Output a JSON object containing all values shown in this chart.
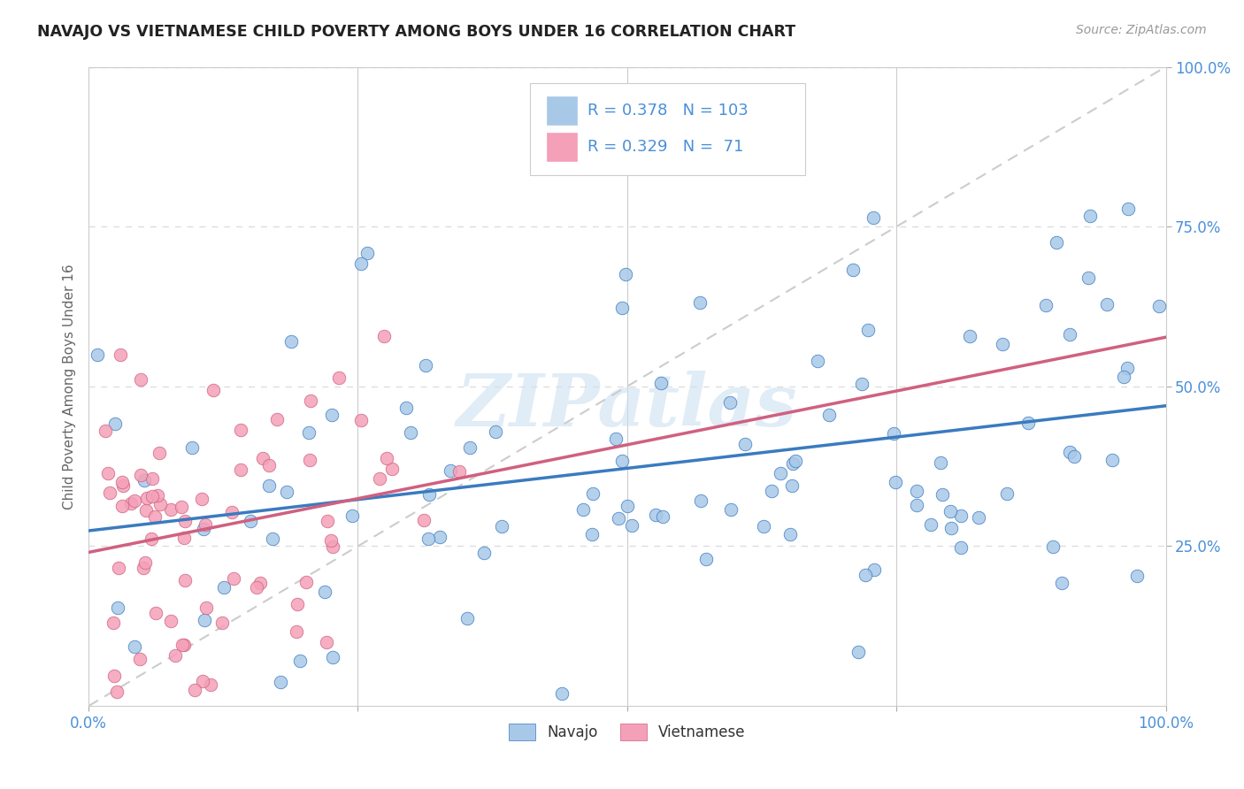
{
  "title": "NAVAJO VS VIETNAMESE CHILD POVERTY AMONG BOYS UNDER 16 CORRELATION CHART",
  "source": "Source: ZipAtlas.com",
  "ylabel": "Child Poverty Among Boys Under 16",
  "watermark": "ZIPatlas",
  "navajo_R": 0.378,
  "navajo_N": 103,
  "vietnamese_R": 0.329,
  "vietnamese_N": 71,
  "navajo_color": "#a8c8e8",
  "vietnamese_color": "#f4a0b8",
  "navajo_line_color": "#3a7bbf",
  "vietnamese_line_color": "#d06080",
  "tick_color": "#4a90d9",
  "title_color": "#222222",
  "source_color": "#999999",
  "background_color": "#ffffff",
  "grid_color": "#dddddd",
  "diagonal_color": "#cccccc",
  "watermark_color": "#cce0f0"
}
